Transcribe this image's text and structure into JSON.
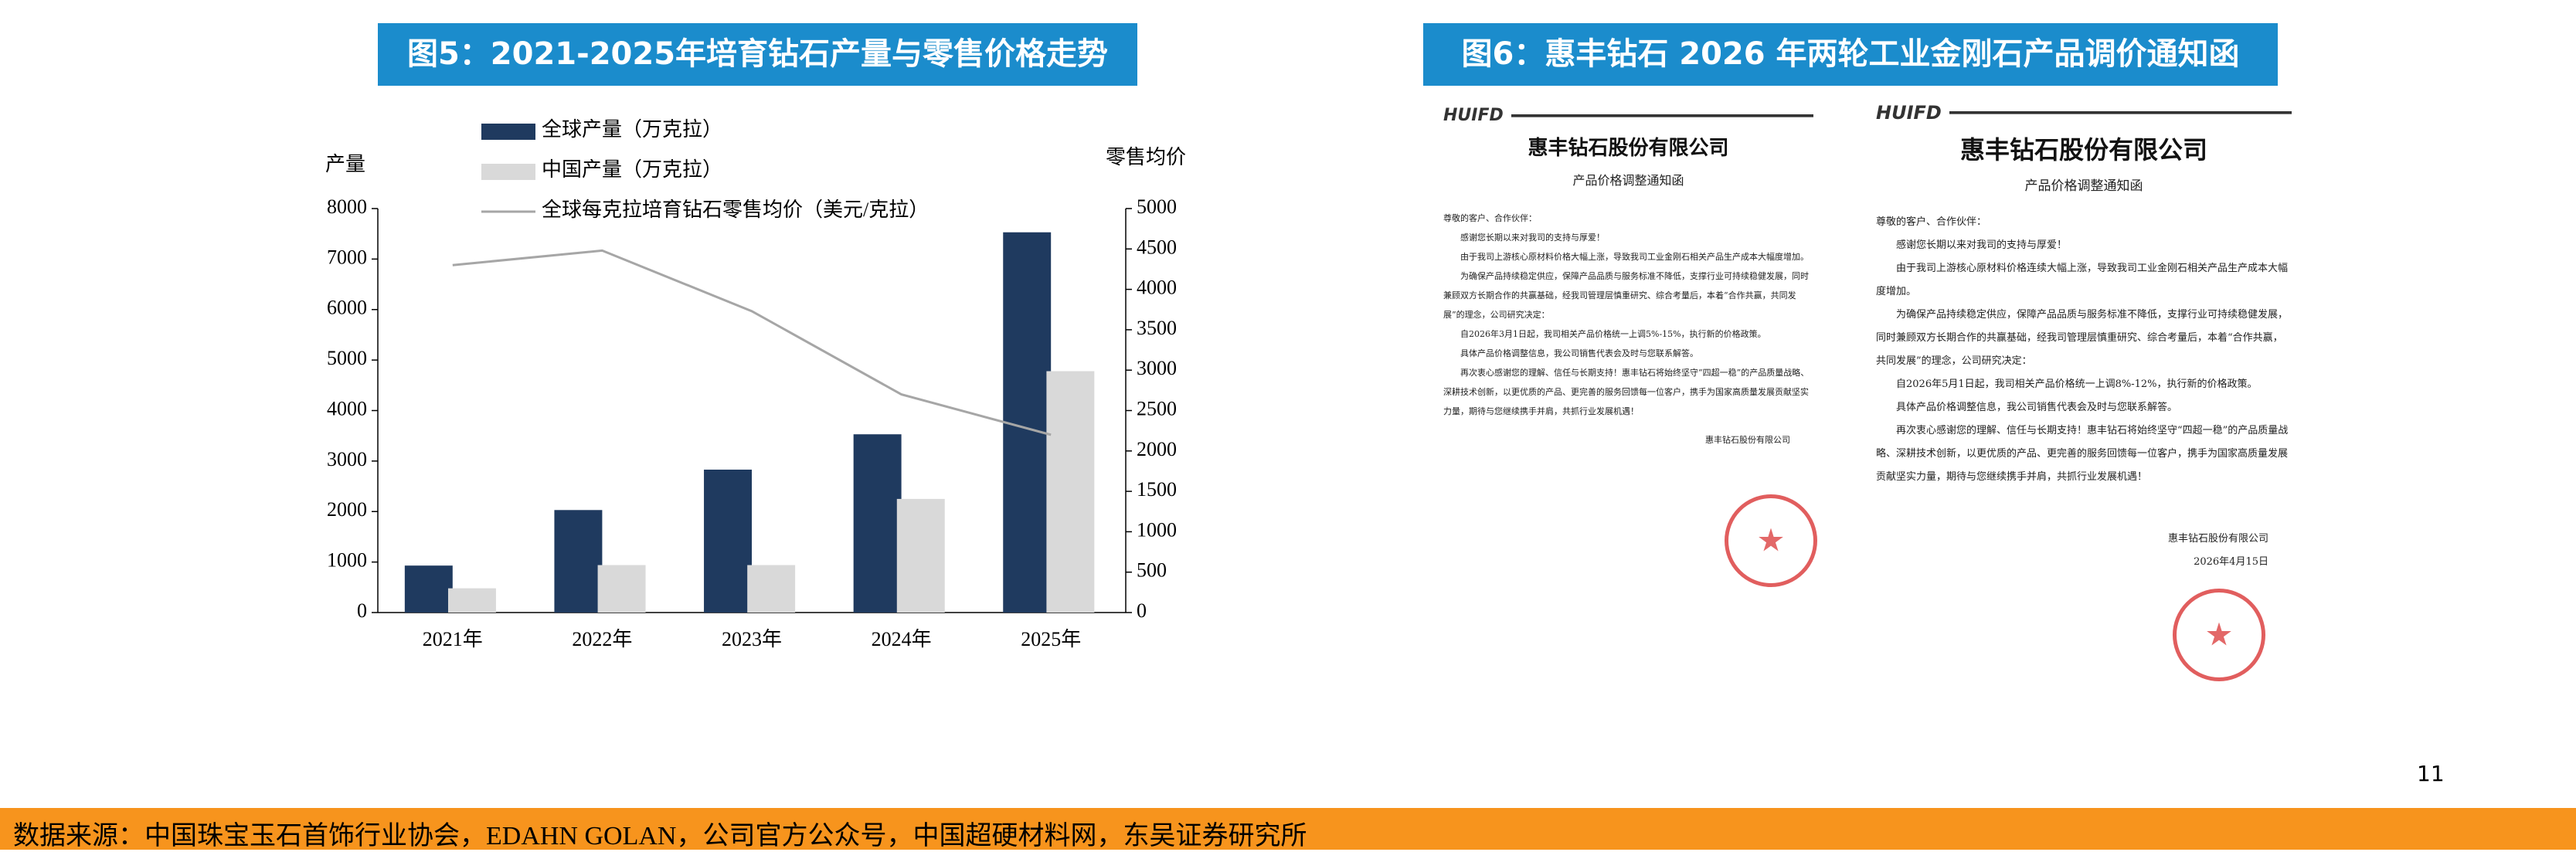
{
  "chart_data": {
    "type": "bar-line",
    "title": "图5：2021-2025年培育钻石产量与零售价格走势",
    "ylabel": "产量",
    "y2label": "零售均价",
    "categories": [
      "2021年",
      "2022年",
      "2023年",
      "2024年",
      "2025年"
    ],
    "series": [
      {
        "name": "全球产量（万克拉）",
        "type": "bar",
        "color": "#1f3a5f",
        "values": [
          930,
          2030,
          2830,
          3530,
          7530
        ]
      },
      {
        "name": "中国产量（万克拉）",
        "type": "bar",
        "color": "#d9d9d9",
        "values": [
          480,
          940,
          940,
          2250,
          4780
        ]
      },
      {
        "name": "全球每克拉培育钻石零售均价（美元/克拉）",
        "type": "line",
        "axis": "y2",
        "color": "#a6a6a6",
        "values": [
          4300,
          4480,
          3730,
          2700,
          2200
        ]
      }
    ],
    "ylim": [
      0,
      8000
    ],
    "yticks": [
      0,
      1000,
      2000,
      3000,
      4000,
      5000,
      6000,
      7000,
      8000
    ],
    "y2lim": [
      0,
      5000
    ],
    "y2ticks": [
      0,
      500,
      1000,
      1500,
      2000,
      2500,
      3000,
      3500,
      4000,
      4500,
      5000
    ],
    "legend": "upper-left",
    "grid": false
  },
  "figure6_title": "图6：惠丰钻石 2026 年两轮工业金刚石产品调价通知函",
  "documents": [
    {
      "logo": "HUIFD",
      "company": "惠丰钻石股份有限公司",
      "subject": "产品价格调整通知函",
      "paragraphs": [
        "尊敬的客户、合作伙伴：",
        "感谢您长期以来对我司的支持与厚爱！",
        "由于我司上游核心原材料价格大幅上涨，导致我司工业金刚石相关产品生产成本大幅度增加。",
        "为确保产品持续稳定供应，保障产品品质与服务标准不降低，支撑行业可持续稳健发展，同时兼顾双方长期合作的共赢基础，经我司管理层慎重研究、综合考量后，本着“合作共赢，共同发展”的理念，公司研究决定：",
        "自2026年3月1日起，我司相关产品价格统一上调5%-15%，执行新的价格政策。",
        "具体产品价格调整信息，我公司销售代表会及时与您联系解答。",
        "再次衷心感谢您的理解、信任与长期支持！惠丰钻石将始终坚守“四超一稳”的产品质量战略、深耕技术创新，以更优质的产品、更完善的服务回馈每一位客户，携手为国家高质量发展贡献坚实力量，期待与您继续携手并肩，共抓行业发展机遇！"
      ],
      "signature": "惠丰钻石股份有限公司"
    },
    {
      "logo": "HUIFD",
      "company": "惠丰钻石股份有限公司",
      "subject": "产品价格调整通知函",
      "paragraphs": [
        "尊敬的客户、合作伙伴：",
        "感谢您长期以来对我司的支持与厚爱！",
        "由于我司上游核心原材料价格连续大幅上涨，导致我司工业金刚石相关产品生产成本大幅度增加。",
        "为确保产品持续稳定供应，保障产品品质与服务标准不降低，支撑行业可持续稳健发展，同时兼顾双方长期合作的共赢基础，经我司管理层慎重研究、综合考量后，本着“合作共赢，共同发展”的理念，公司研究决定：",
        "自2026年5月1日起，我司相关产品价格统一上调8%-12%，执行新的价格政策。",
        "具体产品价格调整信息，我公司销售代表会及时与您联系解答。",
        "再次衷心感谢您的理解、信任与长期支持！惠丰钻石将始终坚守“四超一稳”的产品质量战略、深耕技术创新，以更优质的产品、更完善的服务回馈每一位客户，携手为国家高质量发展贡献坚实力量，期待与您继续携手并肩，共抓行业发展机遇！"
      ],
      "signature": "惠丰钻石股份有限公司",
      "date": "2026年4月15日"
    }
  ],
  "page_number": "11",
  "source": "数据来源：中国珠宝玉石首饰行业协会，EDAHN GOLAN，公司官方公众号，中国超硬材料网，东吴证券研究所"
}
